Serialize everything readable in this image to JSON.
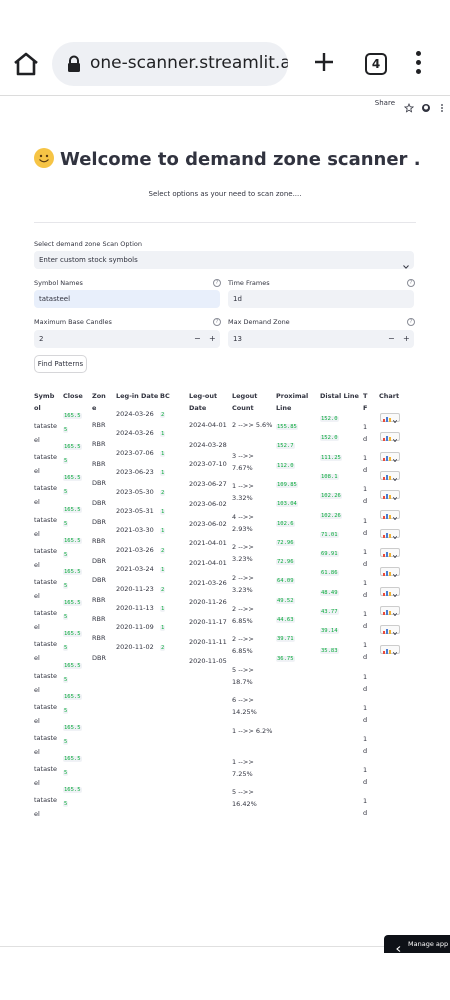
{
  "browser": {
    "url": "one-scanner.streamlit.app",
    "tab_count": "4"
  },
  "header": {
    "share": "Share"
  },
  "page": {
    "title": "Welcome to demand zone scanner .",
    "subtitle": "Select options as your need to scan zone...."
  },
  "form": {
    "scan_option_label": "Select demand zone Scan Option",
    "scan_option_value": "Enter custom stock symbols",
    "symbol_label": "Symbol Names",
    "symbol_value": "tatasteel",
    "timeframe_label": "Time Frames",
    "timeframe_value": "1d",
    "base_label": "Maximum Base Candles",
    "base_value": "2",
    "max_zone_label": "Max Demand Zone",
    "max_zone_value": "13",
    "minus": "−",
    "plus": "+",
    "help": "?",
    "find_button": "Find Patterns"
  },
  "table": {
    "headers": {
      "symbol_a": "Symb",
      "symbol_b": "ol",
      "close": "Close",
      "zone_a": "Zon",
      "zone_b": "e",
      "legin": "Leg-in Date",
      "bc": "BC",
      "legout_a": "Leg-out",
      "legout_b": "Date",
      "count_a": "Legout",
      "count_b": "Count",
      "prox_a": "Proximal",
      "prox_b": "Line",
      "distal": "Distal Line",
      "tf_a": "T",
      "tf_b": "F",
      "chart": "Chart"
    },
    "symbol_parts": [
      "tataste",
      "el"
    ],
    "close_parts": [
      "165.5",
      "5"
    ],
    "tf_parts": [
      "1",
      "d"
    ],
    "zones": [
      "RBR",
      "RBR",
      "RBR",
      "DBR",
      "DBR",
      "DBR",
      "RBR",
      "DBR",
      "DBR",
      "RBR",
      "RBR",
      "RBR",
      "DBR"
    ],
    "legin_dates": [
      "2024-03-26",
      "2024-03-26",
      "2023-07-06",
      "2023-06-23",
      "2023-05-30",
      "2023-05-31",
      "2021-03-30",
      "2021-03-26",
      "2021-03-24",
      "2020-11-23",
      "2020-11-13",
      "2020-11-09",
      "2020-11-02"
    ],
    "bcs": [
      "2",
      "1",
      "1",
      "1",
      "2",
      "1",
      "1",
      "2",
      "1",
      "2",
      "1",
      "1",
      "2"
    ],
    "legout_dates": [
      "2024-04-01",
      "2024-03-28",
      "2023-07-10",
      "2023-06-27",
      "2023-06-02",
      "2023-06-02",
      "2021-04-01",
      "2021-04-01",
      "2021-03-26",
      "2020-11-26",
      "2020-11-17",
      "2020-11-11",
      "2020-11-05"
    ],
    "legout_counts": [
      [
        "2 -->> 5.6%"
      ],
      [
        "3 -->>",
        "7.67%"
      ],
      [
        "1 -->>",
        "3.32%"
      ],
      [
        "4 -->>",
        "2.93%"
      ],
      [
        "2 -->>",
        "3.23%"
      ],
      [
        "2 -->>",
        "3.23%"
      ],
      [
        "2 -->>",
        "6.85%"
      ],
      [
        "2 -->>",
        "6.85%"
      ],
      [
        "5 -->>",
        "18.7%"
      ],
      [
        "6 -->>",
        "14.25%"
      ],
      [
        "1 -->> 6.2%"
      ],
      [
        "1 -->>",
        "7.25%"
      ],
      [
        "5 -->>",
        "16.42%"
      ]
    ],
    "proximal": [
      "155.85",
      "152.7",
      "112.0",
      "109.85",
      "103.04",
      "102.6",
      "72.96",
      "72.96",
      "64.09",
      "49.52",
      "44.63",
      "39.71",
      "36.75"
    ],
    "distal": [
      "152.0",
      "152.0",
      "111.25",
      "108.1",
      "102.26",
      "102.26",
      "71.01",
      "69.91",
      "61.86",
      "48.49",
      "43.77",
      "39.14",
      "35.83"
    ]
  },
  "footer": {
    "manage_app": "Manage app"
  },
  "colors": {
    "number_green": "#09ab3b",
    "field_bg": "#f0f2f6",
    "text": "#31333f"
  }
}
